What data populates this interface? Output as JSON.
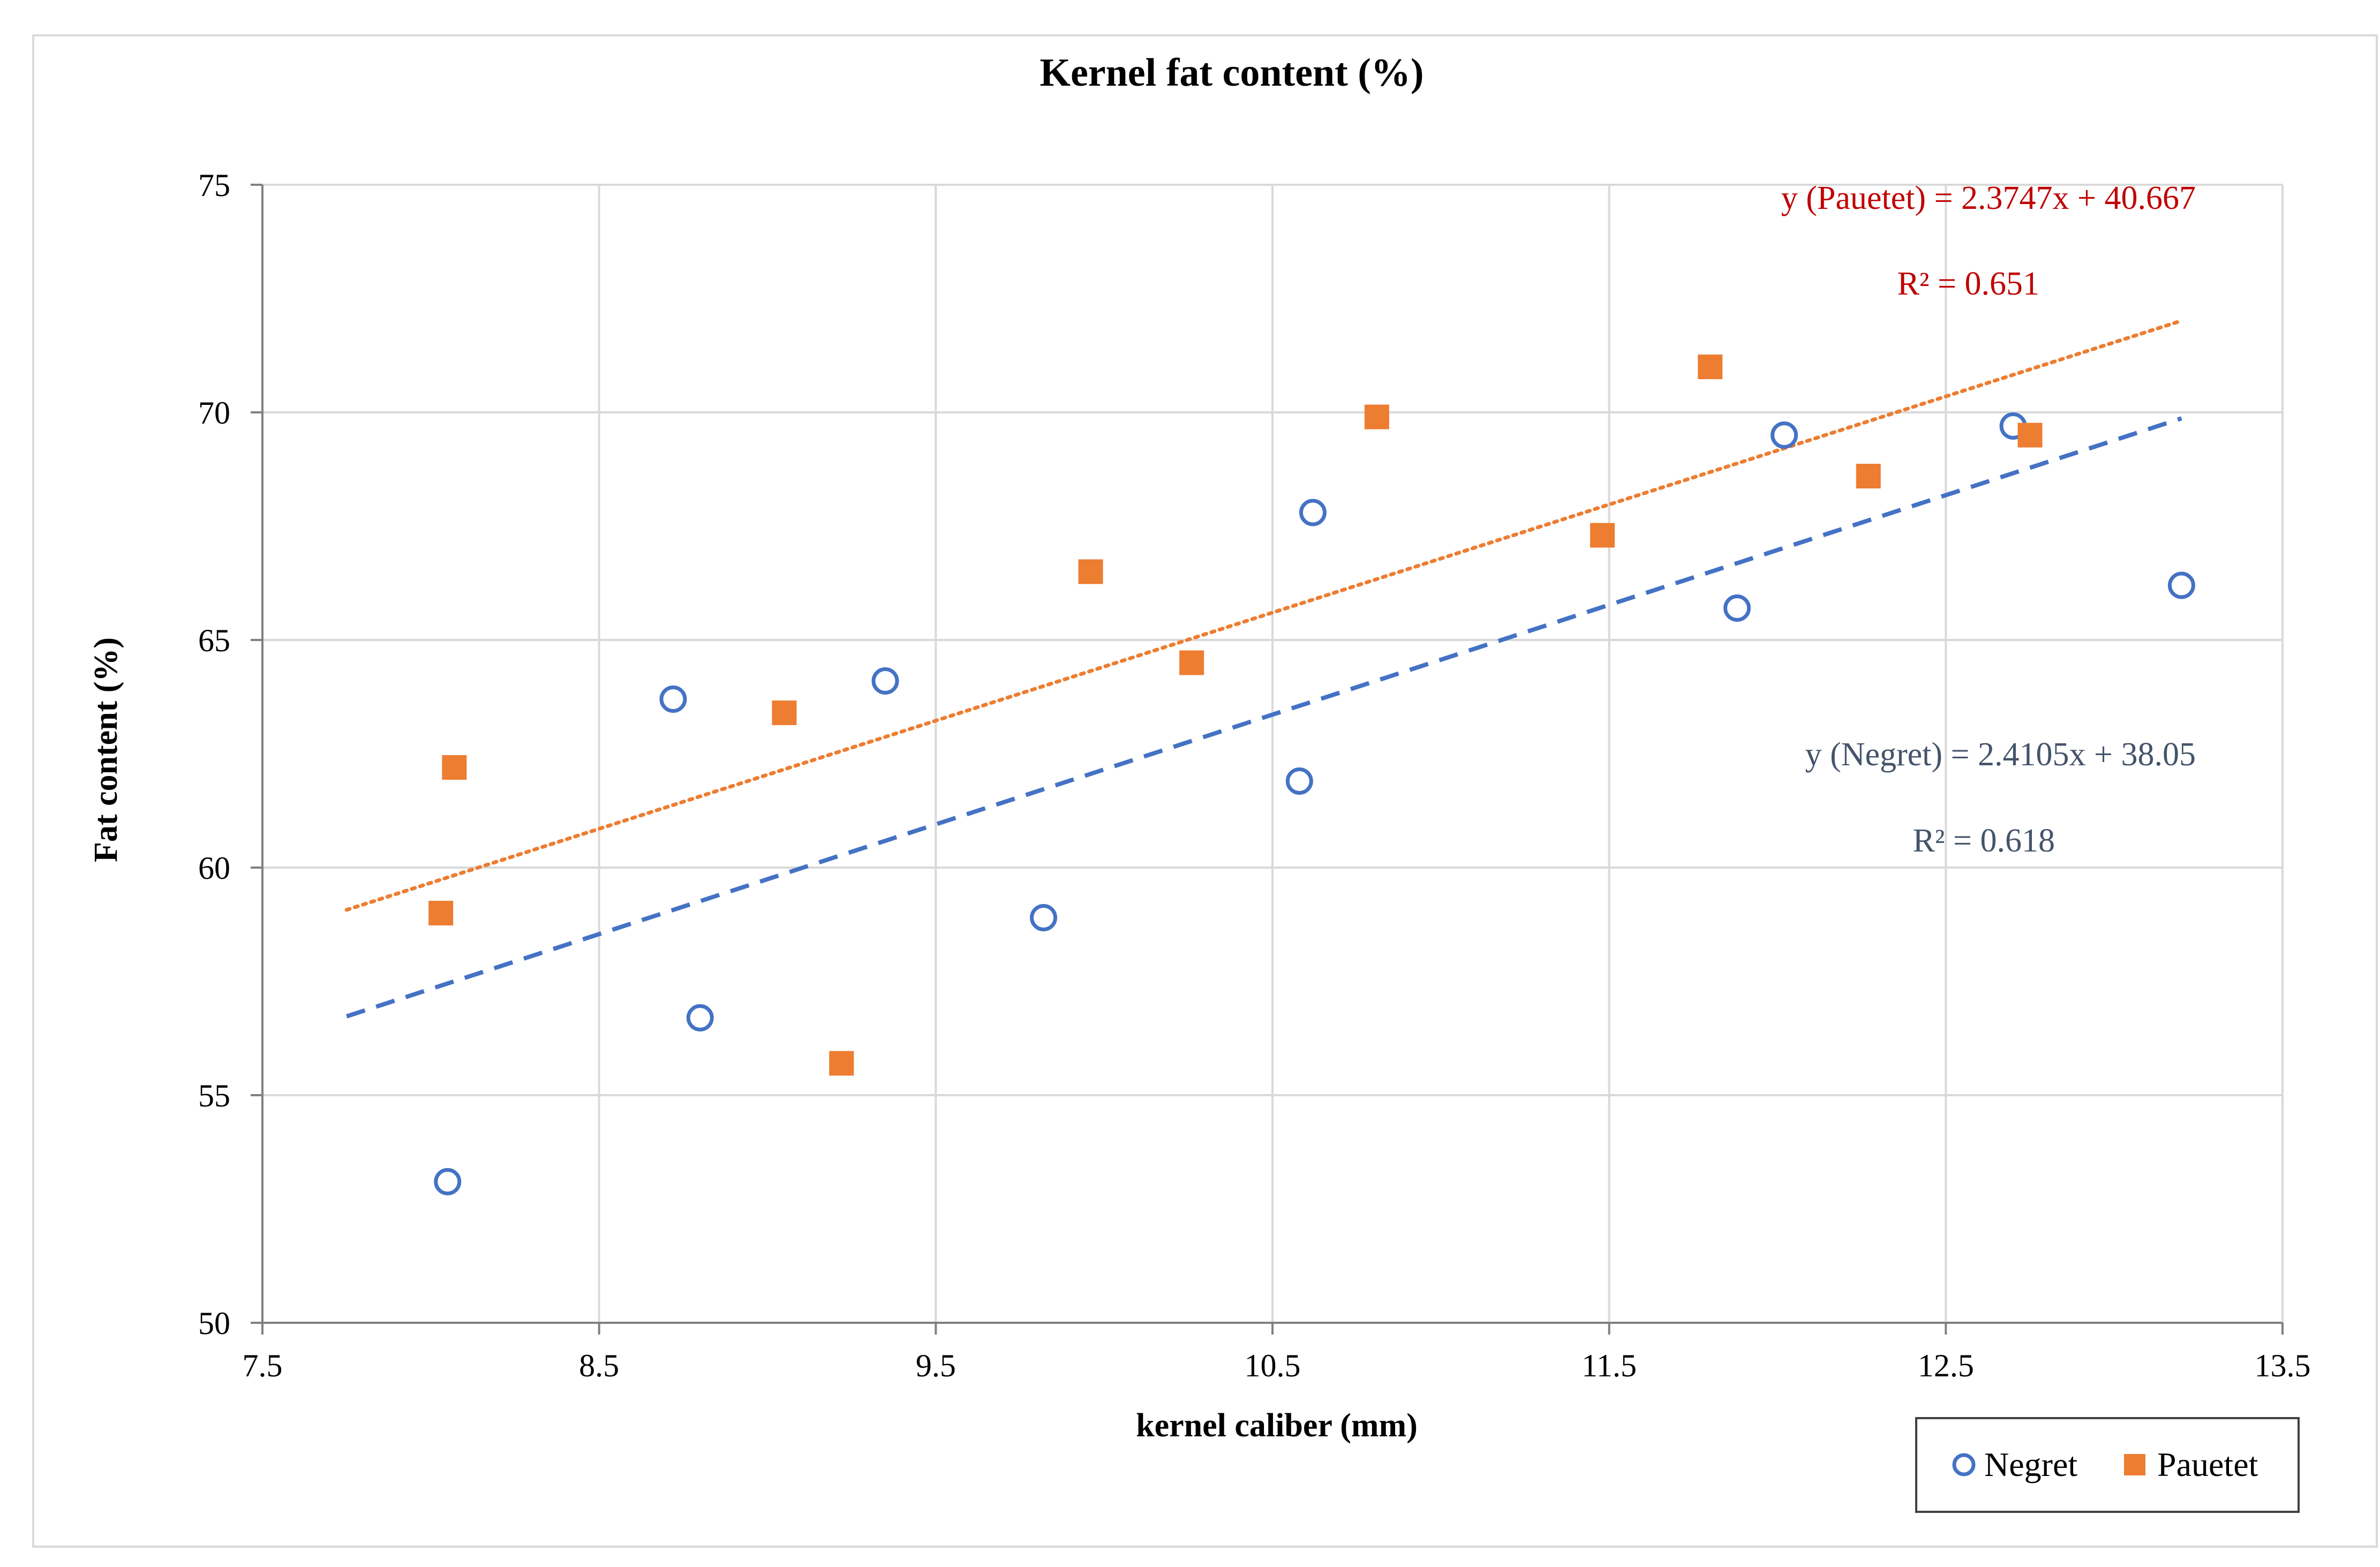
{
  "chart_data": {
    "type": "scatter",
    "title": "Kernel fat content (%)",
    "xlabel": "kernel caliber (mm)",
    "ylabel": "Fat content (%)",
    "xlim": [
      7.5,
      13.5
    ],
    "ylim": [
      50,
      75
    ],
    "xticks": [
      7.5,
      8.5,
      9.5,
      10.5,
      11.5,
      12.5,
      13.5
    ],
    "xtick_labels": [
      "7.5",
      "8.5",
      "9.5",
      "10.5",
      "11.5",
      "12.5",
      "13.5"
    ],
    "yticks": [
      50,
      55,
      60,
      65,
      70,
      75
    ],
    "ytick_labels": [
      "50",
      "55",
      "60",
      "65",
      "70",
      "75"
    ],
    "grid": true,
    "legend_position": "bottom-right",
    "series": [
      {
        "name": "Negret",
        "marker": "circle-open",
        "color": "#4472C4",
        "points": [
          [
            8.05,
            53.1
          ],
          [
            8.72,
            63.7
          ],
          [
            8.8,
            56.7
          ],
          [
            9.35,
            64.1
          ],
          [
            9.82,
            58.9
          ],
          [
            10.58,
            61.9
          ],
          [
            10.62,
            67.8
          ],
          [
            11.88,
            65.7
          ],
          [
            12.02,
            69.5
          ],
          [
            12.7,
            69.7
          ],
          [
            13.2,
            66.2
          ]
        ],
        "trendline": {
          "style": "dashed",
          "x_range": [
            7.75,
            13.2
          ],
          "slope": 2.4105,
          "intercept": 38.05,
          "equation": "y (Negret) = 2.4105x + 38.05",
          "r2_label": "R² = 0.618",
          "label_color": "#44546A"
        }
      },
      {
        "name": "Pauetet",
        "marker": "square-filled",
        "color": "#ED7D31",
        "points": [
          [
            8.03,
            59.0
          ],
          [
            8.07,
            62.2
          ],
          [
            9.05,
            63.4
          ],
          [
            9.22,
            55.7
          ],
          [
            9.96,
            66.5
          ],
          [
            10.26,
            64.5
          ],
          [
            10.81,
            69.9
          ],
          [
            11.48,
            67.3
          ],
          [
            11.8,
            71.0
          ],
          [
            12.27,
            68.6
          ],
          [
            12.75,
            69.5
          ]
        ],
        "trendline": {
          "style": "dotted",
          "x_range": [
            7.75,
            13.2
          ],
          "slope": 2.3747,
          "intercept": 40.667,
          "equation": "y (Pauetet)  = 2.3747x + 40.667",
          "r2_label": "R² = 0.651",
          "label_color": "#C00000"
        }
      }
    ]
  }
}
